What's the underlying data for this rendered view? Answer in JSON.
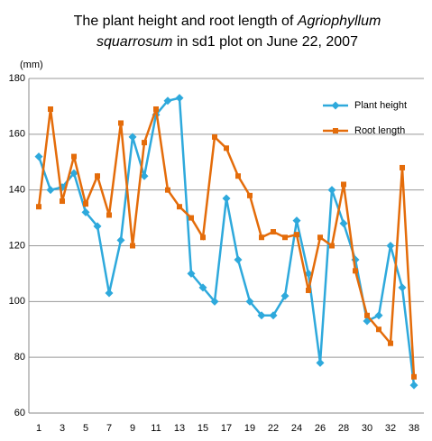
{
  "chart_data": {
    "type": "line",
    "title": [
      "The plant height and root length of ",
      "Agriophyllum",
      "squarrosum",
      " in sd1 plot on June 22, 2007"
    ],
    "y_label": "(mm)",
    "categories": [
      "1",
      null,
      "3",
      null,
      "5",
      null,
      "7",
      null,
      "9",
      null,
      "11",
      null,
      "13",
      null,
      "15",
      null,
      "17",
      null,
      "19",
      null,
      "22",
      null,
      "24",
      null,
      "26",
      null,
      "28",
      null,
      "30",
      null,
      "32",
      null,
      "38"
    ],
    "series": [
      {
        "name": "Plant height",
        "color": "#2ea9dc",
        "marker": "diamond",
        "values": [
          152,
          140,
          141,
          146,
          132,
          127,
          103,
          122,
          159,
          145,
          167,
          172,
          173,
          110,
          105,
          100,
          137,
          115,
          100,
          95,
          95,
          102,
          129,
          110,
          78,
          140,
          128,
          115,
          93,
          95,
          120,
          105,
          70
        ]
      },
      {
        "name": "Root length",
        "color": "#e46c0a",
        "marker": "square",
        "values": [
          134,
          169,
          136,
          152,
          135,
          145,
          131,
          164,
          120,
          157,
          169,
          140,
          134,
          130,
          123,
          159,
          155,
          145,
          138,
          123,
          125,
          123,
          124,
          104,
          123,
          120,
          142,
          111,
          95,
          90,
          85,
          148,
          73
        ]
      }
    ],
    "ylim": [
      60,
      180
    ],
    "yticks": [
      60,
      80,
      100,
      120,
      140,
      160,
      180
    ],
    "grid": true,
    "legend": "upper right"
  }
}
